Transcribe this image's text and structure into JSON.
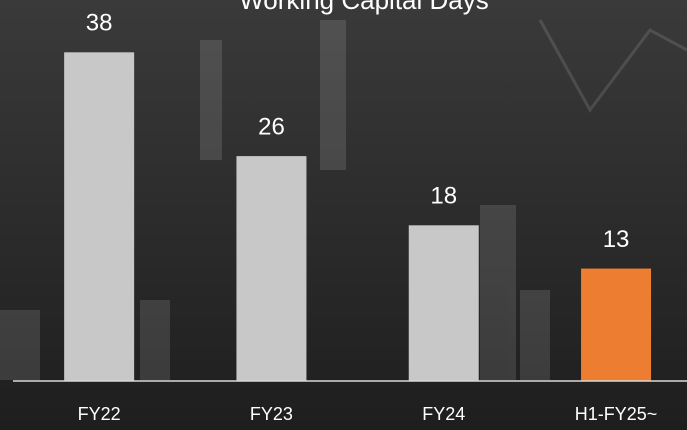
{
  "chart_data": {
    "type": "bar",
    "title": "Working Capital Days",
    "categories": [
      "FY22",
      "FY23",
      "FY24",
      "H1-FY25~"
    ],
    "values": [
      38,
      26,
      18,
      13
    ],
    "colors": [
      "#c8c8c8",
      "#c8c8c8",
      "#c8c8c8",
      "#ed7d31"
    ],
    "ylim": [
      0,
      40
    ]
  }
}
